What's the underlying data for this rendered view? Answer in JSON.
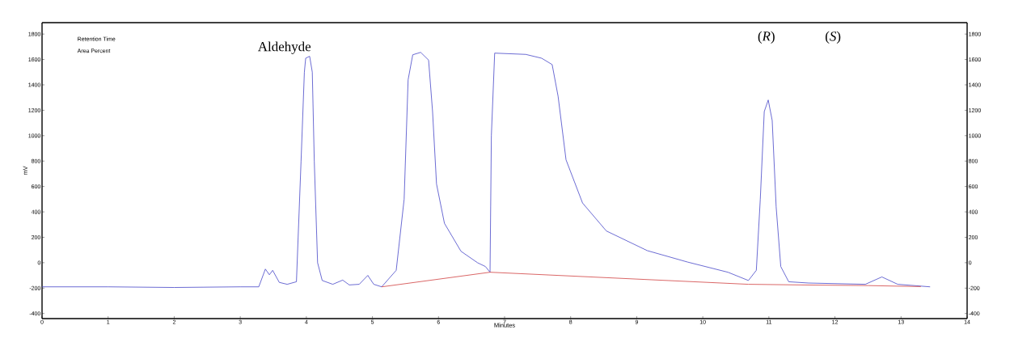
{
  "chart_data": {
    "type": "line",
    "xlabel": "Minutes",
    "ylabel": "mV",
    "annotations": [
      "Aldehyde",
      "(*R*)",
      "(*S*)",
      "Retention Time",
      "Area Percent"
    ],
    "xlim": [
      0,
      14
    ],
    "xticks": [
      0,
      1,
      2,
      3,
      4,
      5,
      6,
      7,
      8,
      9,
      10,
      11,
      12,
      13,
      14
    ],
    "ylim": [
      -440,
      1890
    ],
    "yticks": [
      -400,
      -200,
      0,
      200,
      400,
      600,
      800,
      1000,
      1200,
      1400,
      1600,
      1800
    ],
    "y2lim": [
      -440,
      1890
    ],
    "y2ticks": [
      -400,
      -200,
      0,
      200,
      400,
      600,
      800,
      1000,
      1200,
      1400,
      1600,
      1800
    ],
    "marker": "none",
    "line_style": "solid",
    "series": [
      {
        "color": "#4646c8",
        "x": [
          0,
          1,
          2,
          3,
          3.28,
          3.38,
          3.44,
          3.49,
          3.59,
          3.71,
          3.85,
          3.92,
          3.97,
          3.99,
          4.05,
          4.09,
          4.12,
          4.17,
          4.24,
          4.4,
          4.55,
          4.65,
          4.8,
          4.93,
          5.02,
          5.14,
          5.36,
          5.48,
          5.54,
          5.61,
          5.73,
          5.85,
          5.91,
          5.97,
          6.09,
          6.34,
          6.59,
          6.71,
          6.78,
          6.8,
          6.85,
          7.32,
          7.56,
          7.72,
          7.81,
          7.93,
          8.18,
          8.54,
          9.16,
          9.77,
          10.38,
          10.69,
          10.81,
          10.87,
          10.93,
          10.99,
          11.05,
          11.11,
          11.18,
          11.3,
          11.6,
          12.46,
          12.71,
          12.95,
          13.44
        ],
        "values": [
          -190,
          -190,
          -195,
          -190,
          -190,
          -50,
          -95,
          -60,
          -155,
          -170,
          -150,
          800,
          1500,
          1610,
          1625,
          1500,
          800,
          0,
          -140,
          -170,
          -137,
          -175,
          -170,
          -100,
          -170,
          -190,
          -60,
          500,
          1440,
          1637,
          1656,
          1595,
          1190,
          620,
          310,
          90,
          0,
          -30,
          -75,
          1000,
          1650,
          1640,
          1610,
          1560,
          1310,
          810,
          470,
          250,
          95,
          5,
          -75,
          -140,
          -60,
          500,
          1190,
          1281,
          1120,
          440,
          -30,
          -150,
          -160,
          -170,
          -112,
          -170,
          -190
        ]
      },
      {
        "color": "#d04040",
        "x": [
          5.14,
          6.78,
          10.69,
          11.48,
          12.5,
          13.3
        ],
        "values": [
          -190,
          -75,
          -170,
          -175,
          -180,
          -188
        ]
      }
    ]
  }
}
